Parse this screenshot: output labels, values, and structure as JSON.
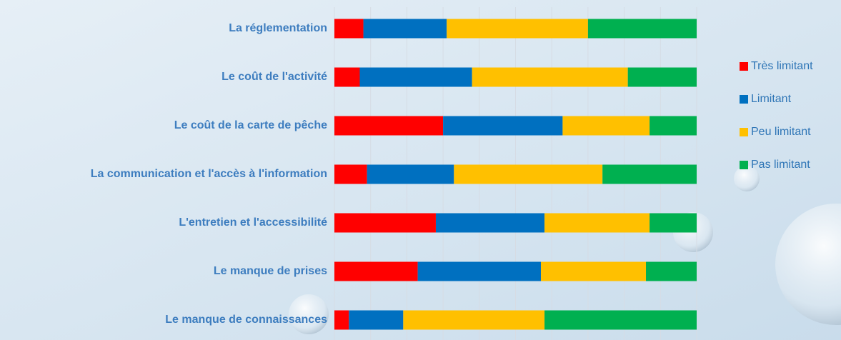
{
  "chart_data": {
    "type": "stacked-bar-horizontal",
    "categories": [
      "La réglementation",
      "Le coût de l'activité",
      "Le coût de la carte de pêche",
      "La communication et l'accès à l'information",
      "L'entretien et l'accessibilité",
      "Le manque de prises",
      "Le manque de connaissances"
    ],
    "series": [
      {
        "name": "Très limitant",
        "color": "#ff0000",
        "values": [
          8,
          7,
          30,
          9,
          28,
          23,
          4
        ]
      },
      {
        "name": "Limitant",
        "color": "#0070c0",
        "values": [
          23,
          31,
          33,
          24,
          30,
          34,
          15
        ]
      },
      {
        "name": "Peu limitant",
        "color": "#ffc000",
        "values": [
          39,
          43,
          24,
          41,
          29,
          29,
          39
        ]
      },
      {
        "name": "Pas limitant",
        "color": "#00b050",
        "values": [
          30,
          19,
          13,
          26,
          13,
          14,
          42
        ]
      }
    ],
    "xlim": [
      0,
      100
    ],
    "xticks": [
      0,
      10,
      20,
      30,
      40,
      50,
      60,
      70,
      80,
      90,
      100
    ],
    "grid": true,
    "legend": "right"
  }
}
